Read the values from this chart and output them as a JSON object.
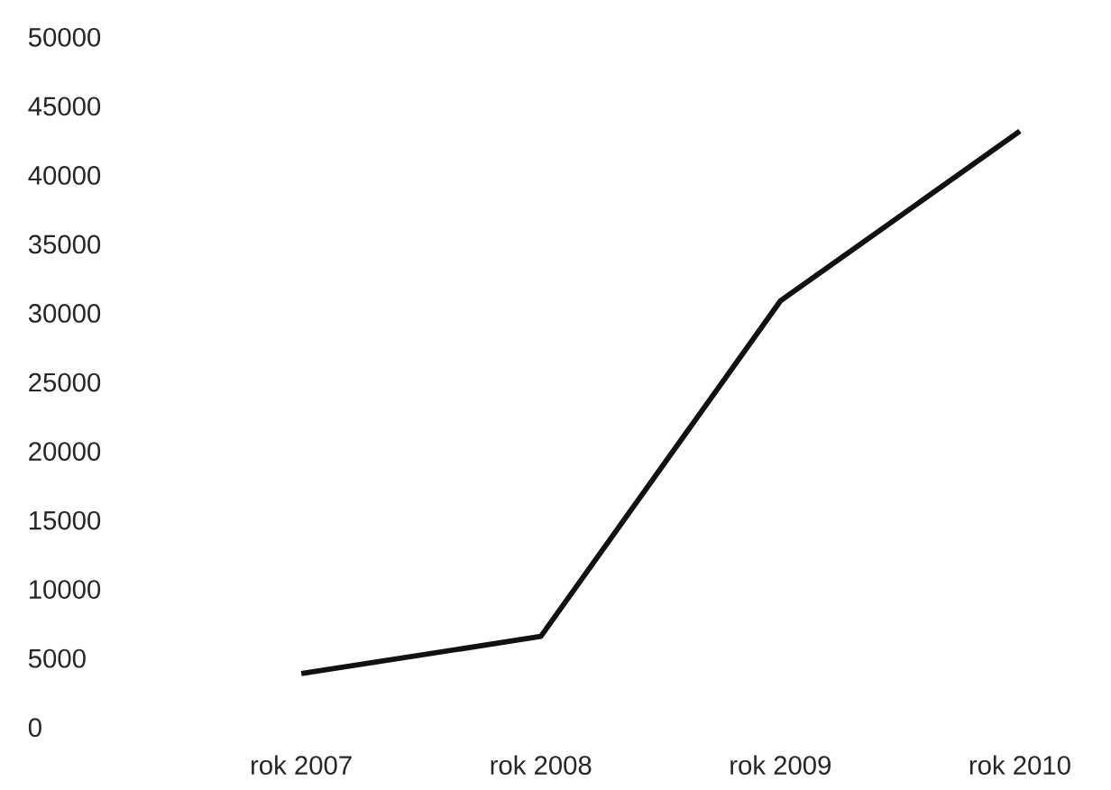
{
  "chart_data": {
    "type": "line",
    "categories": [
      "rok 2007",
      "rok 2008",
      "rok 2009",
      "rok 2010"
    ],
    "values": [
      3900,
      6600,
      30900,
      43200
    ],
    "color": "#111111",
    "ylim": [
      0,
      50000
    ],
    "yticks": [
      0,
      5000,
      10000,
      15000,
      20000,
      25000,
      30000,
      35000,
      40000,
      45000,
      50000
    ]
  }
}
